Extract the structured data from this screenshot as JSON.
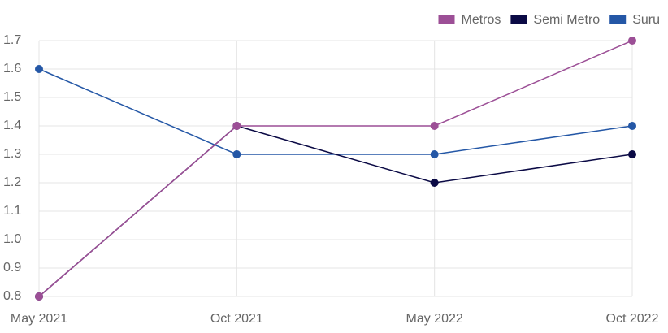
{
  "chart_data": {
    "type": "line",
    "categories": [
      "May 2021",
      "Oct 2021",
      "May 2022",
      "Oct 2022"
    ],
    "series": [
      {
        "name": "Metros",
        "color": "#9c4f96",
        "values": [
          0.8,
          1.4,
          1.4,
          1.7
        ]
      },
      {
        "name": "Semi Metro",
        "color": "#0b0a45",
        "values": [
          0.8,
          1.4,
          1.2,
          1.3
        ]
      },
      {
        "name": "Suru",
        "color": "#2457a6",
        "values": [
          1.6,
          1.3,
          1.3,
          1.4
        ]
      }
    ],
    "ylim": [
      0.8,
      1.7
    ],
    "yticks": [
      0.8,
      0.9,
      {
        "value": 1,
        "label": "1.0"
      },
      1.1,
      1.2,
      1.3,
      1.4,
      1.5,
      1.6,
      1.7
    ],
    "grid": true,
    "legend": "top-right"
  }
}
